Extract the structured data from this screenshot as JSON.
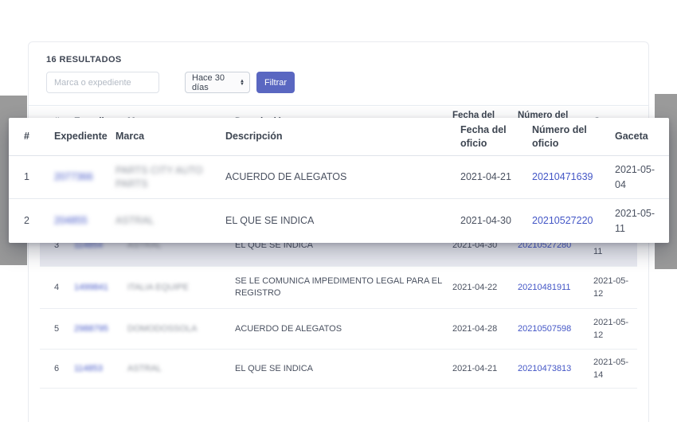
{
  "toolbar": {
    "results_count": "16 RESULTADOS",
    "search_placeholder": "Marca o expediente",
    "period_value": "Hace 30 días",
    "filter_label": "Filtrar"
  },
  "columns": {
    "num": "#",
    "expediente": "Expediente",
    "marca": "Marca",
    "descripcion": "Descripción",
    "fecha": "Fecha del oficio",
    "numero": "Número del oficio",
    "gaceta": "Gaceta"
  },
  "rows": [
    {
      "num": "1",
      "expediente": "2077366",
      "marca": "PARTS CITY AUTO PARTS",
      "descripcion": "ACUERDO DE ALEGATOS",
      "fecha": "2021-04-21",
      "numero": "20210471639",
      "gaceta": "2021-05-04",
      "redacted": true
    },
    {
      "num": "2",
      "expediente": "204855",
      "marca": "ASTRAL",
      "descripcion": "EL QUE SE INDICA",
      "fecha": "2021-04-30",
      "numero": "20210527220",
      "gaceta": "2021-05-11",
      "redacted": true
    },
    {
      "num": "3",
      "expediente": "114854",
      "marca": "ASTRAL",
      "descripcion": "EL QUE SE INDICA",
      "fecha": "2021-04-30",
      "numero": "20210527280",
      "gaceta": "2021-05-11",
      "redacted": true,
      "highlighted": true
    },
    {
      "num": "4",
      "expediente": "1499841",
      "marca": "ITALIA EQUIPE",
      "descripcion": "SE LE COMUNICA IMPEDIMENTO LEGAL PARA EL REGISTRO",
      "fecha": "2021-04-22",
      "numero": "20210481911",
      "gaceta": "2021-05-12",
      "redacted": true
    },
    {
      "num": "5",
      "expediente": "2988795",
      "marca": "DOMODOSSOLA",
      "descripcion": "ACUERDO DE ALEGATOS",
      "fecha": "2021-04-28",
      "numero": "20210507598",
      "gaceta": "2021-05-12",
      "redacted": true
    },
    {
      "num": "6",
      "expediente": "114853",
      "marca": "ASTRAL",
      "descripcion": "EL QUE SE INDICA",
      "fecha": "2021-04-21",
      "numero": "20210473813",
      "gaceta": "2021-05-14",
      "redacted": true
    }
  ],
  "colors": {
    "accent": "#5a67c1",
    "link": "#4356c6",
    "side_bars": "#9a9a9a",
    "row_highlight": "#e9eaf1"
  }
}
